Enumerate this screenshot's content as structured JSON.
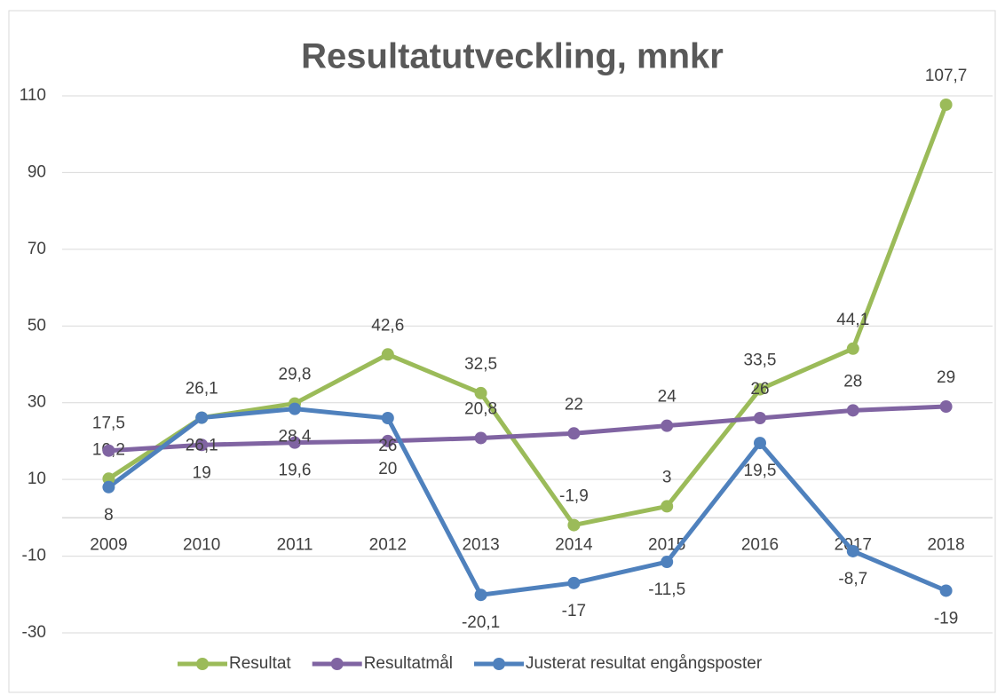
{
  "chart_data": {
    "type": "line",
    "title": "Resultatutveckling, mnkr",
    "categories": [
      "2009",
      "2010",
      "2011",
      "2012",
      "2013",
      "2014",
      "2015",
      "2016",
      "2017",
      "2018"
    ],
    "series": [
      {
        "name": "Resultat",
        "color": "#9bbb59",
        "values": [
          10.2,
          26.1,
          29.8,
          42.6,
          32.5,
          -1.9,
          3,
          33.5,
          44.1,
          107.7
        ],
        "value_labels": [
          "10,2",
          "26,1",
          "29,8",
          "42,6",
          "32,5",
          "-1,9",
          "3",
          "33,5",
          "44,1",
          "107,7"
        ]
      },
      {
        "name": "Resultatmål",
        "color": "#8064a2",
        "values": [
          17.5,
          19,
          19.6,
          20,
          20.8,
          22,
          24,
          26,
          28,
          29
        ],
        "value_labels": [
          "17,5",
          "19",
          "19,6",
          "20",
          "20,8",
          "22",
          "24",
          "26",
          "28",
          "29"
        ]
      },
      {
        "name": "Justerat resultat engångsposter",
        "color": "#4f81bd",
        "values": [
          8,
          26.1,
          28.4,
          26,
          -20.1,
          -17,
          -11.5,
          19.5,
          -8.7,
          -19
        ],
        "value_labels": [
          "8",
          "26,1",
          "28,4",
          "26",
          "-20,1",
          "-17",
          "-11,5",
          "19,5",
          "-8,7",
          "-19"
        ]
      }
    ],
    "ylim": [
      -30,
      110
    ],
    "yticks": [
      -30,
      -10,
      10,
      30,
      50,
      70,
      90,
      110
    ],
    "grid": true,
    "legend": "bottom"
  }
}
